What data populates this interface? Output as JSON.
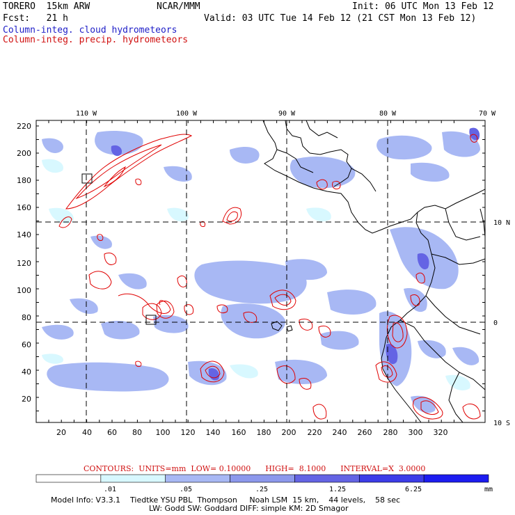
{
  "header": {
    "model": "TORERO  15km ARW",
    "org": "NCAR/MMM",
    "init": "Init: 06 UTC Mon 13 Feb 12",
    "fcst": "Fcst:   21 h",
    "valid": "Valid: 03 UTC Tue 14 Feb 12 (21 CST Mon 13 Feb 12)",
    "legend_cloud": "Column-integ. cloud hydrometeors",
    "legend_precip": "Column-integ. precip. hydrometeors"
  },
  "map": {
    "lon_labels": [
      "110 W",
      "100 W",
      "90 W",
      "80 W",
      "70 W"
    ],
    "lat_labels": [
      "10 N",
      "0",
      "10 S"
    ],
    "y_ticks": [
      "220",
      "200",
      "180",
      "160",
      "140",
      "120",
      "100",
      "80",
      "60",
      "40",
      "20"
    ],
    "x_ticks": [
      "20",
      "40",
      "60",
      "80",
      "100",
      "120",
      "140",
      "160",
      "180",
      "200",
      "220",
      "240",
      "260",
      "280",
      "300",
      "320"
    ]
  },
  "contour_info": {
    "label": "CONTOURS:  UNITS=mm  LOW= 0.10000      HIGH=  8.1000      INTERVAL=X  3.0000"
  },
  "colorbar": {
    "labels": [
      ".01",
      ".05",
      ".25",
      "1.25",
      "6.25"
    ],
    "unit": "mm",
    "colors": [
      "#ffffff",
      "#d8f8ff",
      "#a8b8f4",
      "#8c98ec",
      "#6464e4",
      "#3c3ce8",
      "#1c1cf0"
    ]
  },
  "footer": {
    "line1": "Model Info: V3.3.1    Tiedtke YSU PBL  Thompson     Noah LSM  15 km,    44 levels,    58 sec",
    "line2": "LW: Godd SW: Goddard DIFF: simple KM: 2D Smagor"
  }
}
